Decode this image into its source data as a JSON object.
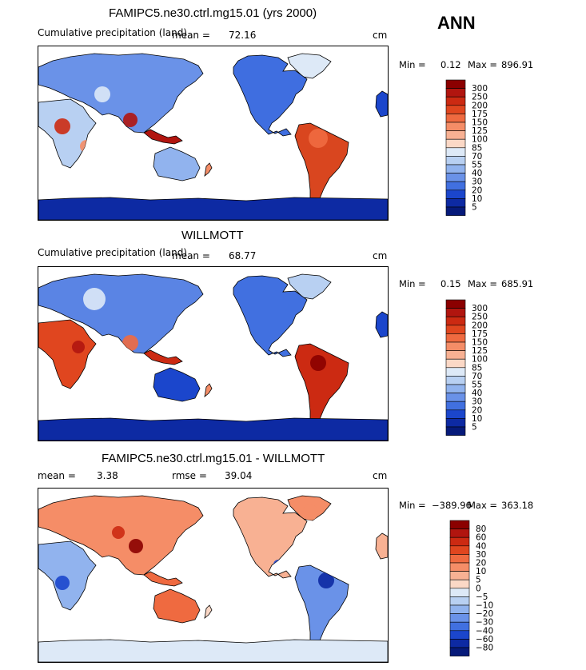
{
  "season": "ANN",
  "chart_data": [
    {
      "type": "heatmap",
      "title": "FAMIPC5.ne30.ctrl.mg15.01 (yrs 2000)",
      "variable": "Cumulative precipitation (land)",
      "units": "cm",
      "stats": {
        "mean_label": "mean =",
        "mean": "72.16",
        "min_label": "Min =",
        "min": "0.12",
        "max_label": "Max =",
        "max": "896.91"
      },
      "colorbar": {
        "levels": [
          "300",
          "250",
          "200",
          "175",
          "150",
          "125",
          "100",
          "85",
          "70",
          "55",
          "40",
          "30",
          "20",
          "10",
          "5"
        ],
        "colors": [
          "#8b0000",
          "#b1150f",
          "#cc2a12",
          "#e0461f",
          "#ef6a40",
          "#f58d67",
          "#f8b193",
          "#fbd8c6",
          "#dde9f7",
          "#b8d0f2",
          "#91b3ee",
          "#6a92e8",
          "#4170e0",
          "#1b46cc",
          "#0d2aa3",
          "#061a7a"
        ]
      }
    },
    {
      "type": "heatmap",
      "title": "WILLMOTT",
      "variable": "Cumulative precipitation (land)",
      "units": "cm",
      "stats": {
        "mean_label": "mean =",
        "mean": "68.77",
        "min_label": "Min =",
        "min": "0.15",
        "max_label": "Max =",
        "max": "685.91"
      },
      "colorbar": {
        "levels": [
          "300",
          "250",
          "200",
          "175",
          "150",
          "125",
          "100",
          "85",
          "70",
          "55",
          "40",
          "30",
          "20",
          "10",
          "5"
        ],
        "colors": [
          "#8b0000",
          "#b1150f",
          "#cc2a12",
          "#e0461f",
          "#ef6a40",
          "#f58d67",
          "#f8b193",
          "#fbd8c6",
          "#dde9f7",
          "#b8d0f2",
          "#91b3ee",
          "#6a92e8",
          "#4170e0",
          "#1b46cc",
          "#0d2aa3",
          "#061a7a"
        ]
      }
    },
    {
      "type": "heatmap",
      "title": "FAMIPC5.ne30.ctrl.mg15.01 - WILLMOTT",
      "units": "cm",
      "stats": {
        "mean_label": "mean =",
        "mean": "3.38",
        "rmse_label": "rmse =",
        "rmse": "39.04",
        "min_label": "Min =",
        "min": "−389.96",
        "max_label": "Max =",
        "max": "363.18"
      },
      "colorbar": {
        "levels": [
          "80",
          "60",
          "40",
          "30",
          "20",
          "10",
          "5",
          "0",
          "−5",
          "−10",
          "−20",
          "−30",
          "−40",
          "−60",
          "−80"
        ],
        "colors": [
          "#8b0000",
          "#b1150f",
          "#cc2a12",
          "#e0461f",
          "#ef6a40",
          "#f58d67",
          "#f8b193",
          "#fbd8c6",
          "#dde9f7",
          "#b8d0f2",
          "#91b3ee",
          "#6a92e8",
          "#4170e0",
          "#1b46cc",
          "#0d2aa3",
          "#061a7a"
        ]
      }
    }
  ]
}
